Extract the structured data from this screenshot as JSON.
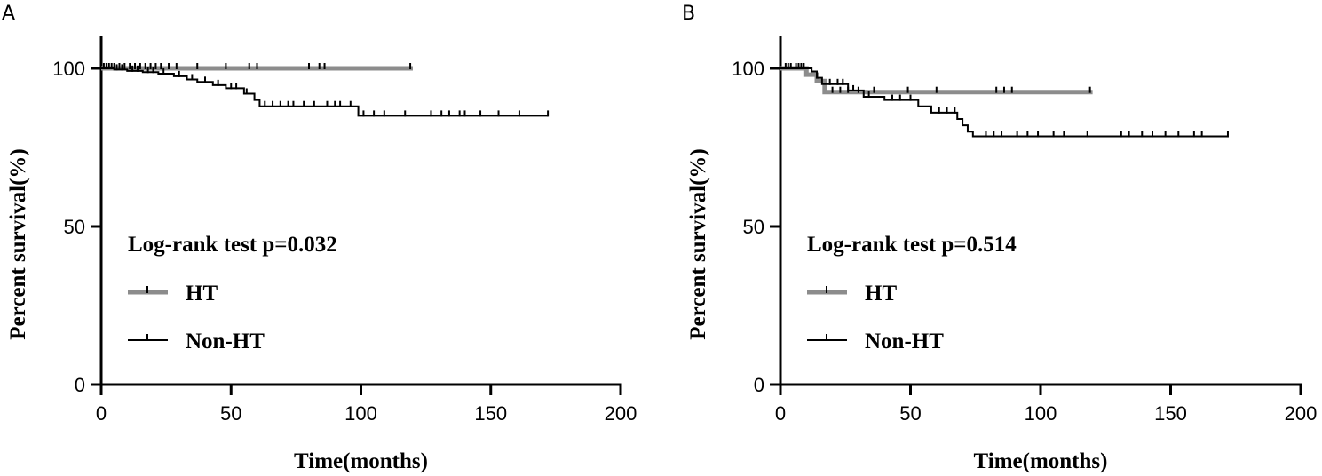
{
  "chart_data": [
    {
      "panel_label": "A",
      "type": "line",
      "subtype": "kaplan-meier",
      "xlabel": "Time(months)",
      "ylabel": "Percent survival(%)",
      "xlim": [
        0,
        200
      ],
      "ylim": [
        0,
        100
      ],
      "xticks": [
        "0",
        "50",
        "100",
        "150",
        "200"
      ],
      "yticks": [
        "0",
        "50",
        "100"
      ],
      "annotation": "Log-rank test p=0.032",
      "legend_position": "left-middle",
      "series": [
        {
          "name": "HT",
          "color": "#8c8c8c",
          "steps": [
            [
              0,
              100
            ],
            [
              120,
              100
            ]
          ],
          "censors": [
            1,
            3,
            5,
            7,
            9,
            11,
            13,
            15,
            17,
            19,
            21,
            23,
            26,
            29,
            37,
            48,
            57,
            60,
            80,
            84,
            86,
            119
          ]
        },
        {
          "name": "Non-HT",
          "color": "#000000",
          "steps": [
            [
              0,
              100
            ],
            [
              5,
              99.6
            ],
            [
              10,
              99.2
            ],
            [
              16,
              98.8
            ],
            [
              22,
              98.3
            ],
            [
              28,
              97.5
            ],
            [
              33,
              96.5
            ],
            [
              37,
              95.7
            ],
            [
              43,
              94.7
            ],
            [
              48,
              93.7
            ],
            [
              55,
              92
            ],
            [
              59,
              90
            ],
            [
              61,
              88
            ],
            [
              99,
              85
            ],
            [
              172,
              85
            ]
          ],
          "censors": [
            2,
            4,
            6,
            8,
            12,
            14,
            18,
            20,
            24,
            30,
            35,
            40,
            45,
            50,
            52,
            56,
            63,
            66,
            69,
            72,
            74,
            78,
            82,
            87,
            90,
            92,
            96,
            101,
            105,
            109,
            117,
            127,
            131,
            134,
            138,
            140,
            146,
            153,
            161,
            172
          ]
        }
      ]
    },
    {
      "panel_label": "B",
      "type": "line",
      "subtype": "kaplan-meier",
      "xlabel": "Time(months)",
      "ylabel": "Percent survival(%)",
      "xlim": [
        0,
        200
      ],
      "ylim": [
        0,
        100
      ],
      "xticks": [
        "0",
        "50",
        "100",
        "150",
        "200"
      ],
      "yticks": [
        "0",
        "50",
        "100"
      ],
      "annotation": "Log-rank test p=0.514",
      "legend_position": "left-middle",
      "series": [
        {
          "name": "HT",
          "color": "#8c8c8c",
          "steps": [
            [
              0,
              100
            ],
            [
              10,
              98
            ],
            [
              14,
              96
            ],
            [
              17,
              92.5
            ],
            [
              120,
              92.5
            ]
          ],
          "censors": [
            3,
            6,
            8,
            20,
            23,
            26,
            30,
            36,
            49,
            60,
            83,
            86,
            89,
            119
          ]
        },
        {
          "name": "Non-HT",
          "color": "#000000",
          "steps": [
            [
              0,
              100
            ],
            [
              12,
              99
            ],
            [
              14,
              97
            ],
            [
              16,
              95
            ],
            [
              26,
              93
            ],
            [
              32,
              91
            ],
            [
              40,
              90
            ],
            [
              53,
              88
            ],
            [
              58,
              86
            ],
            [
              68,
              84
            ],
            [
              70,
              82
            ],
            [
              72,
              80
            ],
            [
              74,
              78.5
            ],
            [
              172,
              78.5
            ]
          ],
          "censors": [
            2,
            4,
            7,
            9,
            19,
            22,
            24,
            28,
            34,
            43,
            46,
            50,
            61,
            64,
            67,
            79,
            82,
            85,
            91,
            95,
            99,
            105,
            109,
            118,
            131,
            134,
            139,
            143,
            148,
            153,
            159,
            162,
            172
          ]
        }
      ]
    }
  ]
}
